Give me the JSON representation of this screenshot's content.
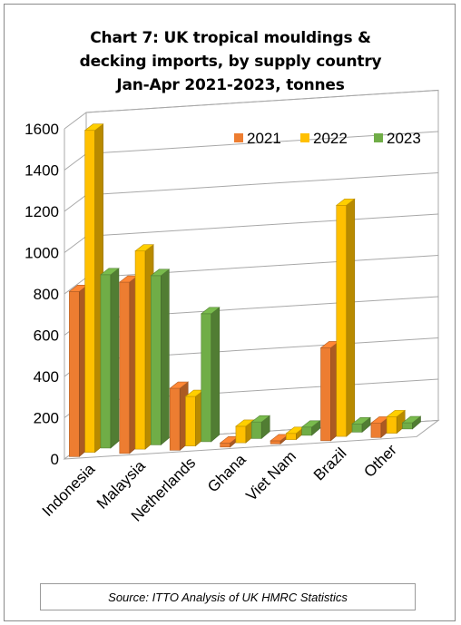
{
  "chart_data": {
    "type": "bar",
    "title_lines": [
      "Chart 7: UK tropical mouldings &",
      "decking imports, by supply country",
      "Jan-Apr 2021-2023, tonnes"
    ],
    "categories": [
      "Indonesia",
      "Malaysia",
      "Netherlands",
      "Ghana",
      "Viet Nam",
      "Brazil",
      "Other"
    ],
    "series": [
      {
        "name": "2021",
        "color": "#ED7D31",
        "values": [
          800,
          830,
          300,
          20,
          15,
          450,
          70
        ]
      },
      {
        "name": "2022",
        "color": "#FFC000",
        "values": [
          1560,
          960,
          240,
          80,
          30,
          1120,
          80
        ]
      },
      {
        "name": "2023",
        "color": "#70AD47",
        "values": [
          840,
          820,
          620,
          80,
          40,
          40,
          30
        ]
      }
    ],
    "ylim": [
      0,
      1600
    ],
    "yticks": [
      "0",
      "200",
      "400",
      "600",
      "800",
      "1000",
      "1200",
      "1400",
      "1600"
    ],
    "grid": true,
    "legend_position": "top-right",
    "xlabel": "",
    "ylabel": ""
  },
  "source": "Source: ITTO Analysis of UK HMRC Statistics"
}
